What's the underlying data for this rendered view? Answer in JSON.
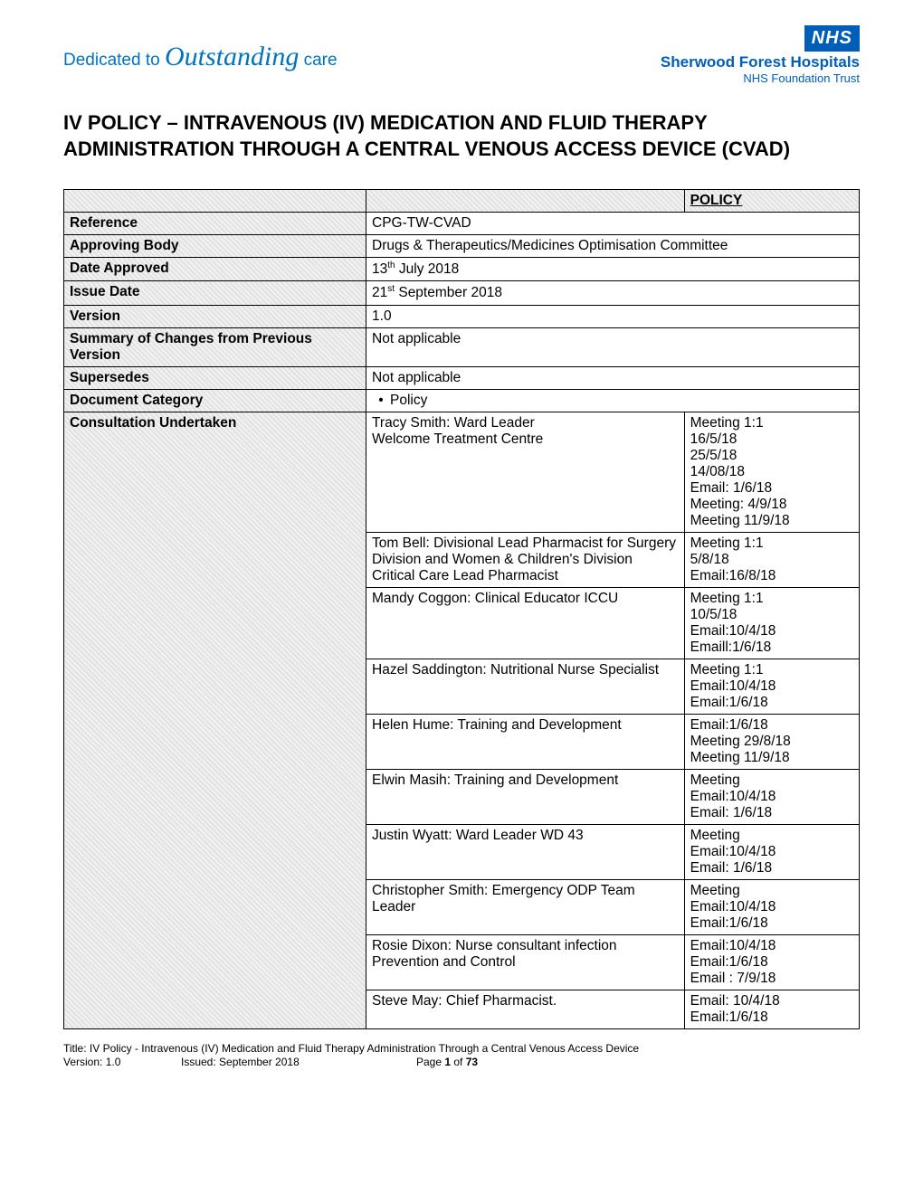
{
  "header": {
    "tagline_prefix": "Dedicated to ",
    "tagline_cursive": "Outstanding",
    "tagline_suffix": " care",
    "nhs_badge": "NHS",
    "org_name": "Sherwood Forest Hospitals",
    "org_sub": "NHS Foundation Trust"
  },
  "title": "IV POLICY – INTRAVENOUS (IV) MEDICATION AND FLUID THERAPY ADMINISTRATION THROUGH A CENTRAL VENOUS ACCESS DEVICE (CVAD)",
  "policy_label": "POLICY",
  "rows": {
    "reference": {
      "label": "Reference",
      "value": "CPG-TW-CVAD"
    },
    "approving_body": {
      "label": "Approving Body",
      "value": "Drugs & Therapeutics/Medicines Optimisation Committee"
    },
    "date_approved": {
      "label": "Date Approved",
      "prefix": "13",
      "sup": "th",
      "suffix": " July 2018"
    },
    "issue_date": {
      "label": "Issue Date",
      "prefix": "21",
      "sup": "st",
      "suffix": " September 2018"
    },
    "version": {
      "label": "Version",
      "value": "1.0"
    },
    "summary": {
      "label": "Summary of Changes from Previous Version",
      "value": "Not applicable"
    },
    "supersedes": {
      "label": "Supersedes",
      "value": "Not applicable"
    },
    "category": {
      "label": "Document Category",
      "value": "Policy"
    },
    "consultation_label": "Consultation Undertaken"
  },
  "consultations": [
    {
      "who": "Tracy Smith: Ward Leader\nWelcome Treatment Centre",
      "meta": "Meeting 1:1\n16/5/18\n25/5/18\n14/08/18\nEmail: 1/6/18\nMeeting: 4/9/18\nMeeting 11/9/18"
    },
    {
      "who": "Tom Bell: Divisional Lead Pharmacist for Surgery Division and Women & Children's Division\nCritical Care Lead Pharmacist",
      "meta": "Meeting 1:1\n5/8/18\nEmail:16/8/18"
    },
    {
      "who": "Mandy Coggon: Clinical Educator ICCU",
      "meta": "Meeting 1:1\n10/5/18\nEmail:10/4/18\nEmaill:1/6/18"
    },
    {
      "who": "Hazel Saddington: Nutritional Nurse Specialist",
      "meta": "Meeting 1:1\nEmail:10/4/18\nEmail:1/6/18"
    },
    {
      "who": "Helen Hume: Training and Development",
      "meta": "Email:1/6/18\nMeeting  29/8/18\nMeeting 11/9/18"
    },
    {
      "who": "Elwin Masih: Training and Development",
      "meta": "Meeting\nEmail:10/4/18\nEmail: 1/6/18"
    },
    {
      "who": "Justin Wyatt: Ward Leader WD 43",
      "meta": "Meeting\nEmail:10/4/18\nEmail: 1/6/18"
    },
    {
      "who": "Christopher Smith: Emergency ODP  Team Leader",
      "meta": "Meeting\nEmail:10/4/18\nEmail:1/6/18"
    },
    {
      "who": "Rosie Dixon: Nurse consultant infection Prevention and Control",
      "meta": "Email:10/4/18\nEmail:1/6/18\nEmail : 7/9/18"
    },
    {
      "who": "Steve May: Chief Pharmacist.",
      "meta": "Email: 10/4/18\nEmail:1/6/18"
    }
  ],
  "footer": {
    "title_line": "Title:  IV Policy - Intravenous (IV) Medication and Fluid Therapy Administration Through a Central Venous Access Device",
    "version": "Version:  1.0",
    "issued": "Issued:  September 2018",
    "page": "Page 1 of 73"
  }
}
